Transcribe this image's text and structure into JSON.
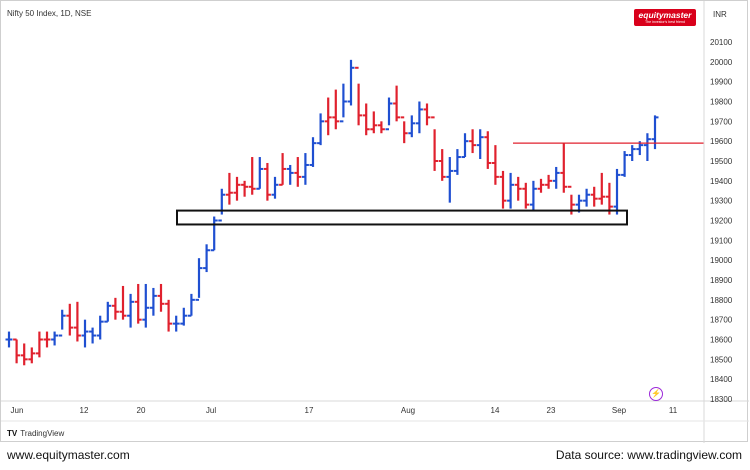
{
  "header": {
    "symbol": "Nifty 50 Index, 1D, NSE",
    "currency": "INR",
    "logo_name": "equitymaster",
    "logo_tagline": "The investor's best friend"
  },
  "branding": {
    "tradingview": "TradingView"
  },
  "footer": {
    "website": "www.equitymaster.com",
    "source": "Data source: www.tradingview.com"
  },
  "icons": {
    "flash": "lightning-icon",
    "tv": "tradingview-logo-icon"
  },
  "colors": {
    "up": "#1f4fd1",
    "down": "#e0212e",
    "resistance": "#e0212e",
    "support_box": "#111111"
  },
  "chart_data": {
    "type": "ohlc-bar",
    "y_ticks": [
      18300,
      18400,
      18500,
      18600,
      18700,
      18800,
      18900,
      19000,
      19100,
      19200,
      19300,
      19400,
      19500,
      19600,
      19700,
      19800,
      19900,
      20000,
      20100
    ],
    "ylim": [
      18300,
      20150
    ],
    "x_ticks": [
      "Jun",
      "12",
      "20",
      "Jul",
      "17",
      "Aug",
      "14",
      "23",
      "Sep",
      "11"
    ],
    "bars": [
      {
        "h": 18640,
        "l": 18560,
        "c": 18600,
        "up": true
      },
      {
        "h": 18600,
        "l": 18480,
        "c": 18520,
        "up": false
      },
      {
        "h": 18580,
        "l": 18470,
        "c": 18500,
        "up": false
      },
      {
        "h": 18560,
        "l": 18480,
        "c": 18530,
        "up": false
      },
      {
        "h": 18640,
        "l": 18510,
        "c": 18600,
        "up": false
      },
      {
        "h": 18640,
        "l": 18560,
        "c": 18600,
        "up": false
      },
      {
        "h": 18640,
        "l": 18570,
        "c": 18620,
        "up": true
      },
      {
        "h": 18750,
        "l": 18650,
        "c": 18720,
        "up": true
      },
      {
        "h": 18780,
        "l": 18620,
        "c": 18660,
        "up": false
      },
      {
        "h": 18790,
        "l": 18590,
        "c": 18620,
        "up": false
      },
      {
        "h": 18700,
        "l": 18560,
        "c": 18640,
        "up": true
      },
      {
        "h": 18660,
        "l": 18580,
        "c": 18620,
        "up": true
      },
      {
        "h": 18720,
        "l": 18600,
        "c": 18690,
        "up": true
      },
      {
        "h": 18790,
        "l": 18690,
        "c": 18770,
        "up": true
      },
      {
        "h": 18810,
        "l": 18700,
        "c": 18740,
        "up": false
      },
      {
        "h": 18870,
        "l": 18700,
        "c": 18720,
        "up": false
      },
      {
        "h": 18830,
        "l": 18660,
        "c": 18790,
        "up": true
      },
      {
        "h": 18880,
        "l": 18680,
        "c": 18700,
        "up": false
      },
      {
        "h": 18880,
        "l": 18660,
        "c": 18760,
        "up": true
      },
      {
        "h": 18860,
        "l": 18720,
        "c": 18820,
        "up": true
      },
      {
        "h": 18880,
        "l": 18740,
        "c": 18780,
        "up": false
      },
      {
        "h": 18800,
        "l": 18640,
        "c": 18680,
        "up": false
      },
      {
        "h": 18720,
        "l": 18640,
        "c": 18680,
        "up": true
      },
      {
        "h": 18760,
        "l": 18670,
        "c": 18720,
        "up": true
      },
      {
        "h": 18830,
        "l": 18720,
        "c": 18800,
        "up": true
      },
      {
        "h": 19010,
        "l": 18810,
        "c": 18960,
        "up": true
      },
      {
        "h": 19080,
        "l": 18940,
        "c": 19050,
        "up": true
      },
      {
        "h": 19220,
        "l": 19050,
        "c": 19200,
        "up": true
      },
      {
        "h": 19360,
        "l": 19230,
        "c": 19330,
        "up": true
      },
      {
        "h": 19440,
        "l": 19280,
        "c": 19340,
        "up": false
      },
      {
        "h": 19420,
        "l": 19300,
        "c": 19380,
        "up": false
      },
      {
        "h": 19400,
        "l": 19320,
        "c": 19370,
        "up": false
      },
      {
        "h": 19520,
        "l": 19330,
        "c": 19360,
        "up": false
      },
      {
        "h": 19520,
        "l": 19360,
        "c": 19460,
        "up": true
      },
      {
        "h": 19490,
        "l": 19300,
        "c": 19330,
        "up": false
      },
      {
        "h": 19420,
        "l": 19310,
        "c": 19380,
        "up": true
      },
      {
        "h": 19540,
        "l": 19380,
        "c": 19460,
        "up": false
      },
      {
        "h": 19480,
        "l": 19380,
        "c": 19440,
        "up": true
      },
      {
        "h": 19520,
        "l": 19370,
        "c": 19420,
        "up": false
      },
      {
        "h": 19540,
        "l": 19380,
        "c": 19480,
        "up": true
      },
      {
        "h": 19620,
        "l": 19470,
        "c": 19590,
        "up": true
      },
      {
        "h": 19740,
        "l": 19580,
        "c": 19700,
        "up": true
      },
      {
        "h": 19820,
        "l": 19630,
        "c": 19720,
        "up": false
      },
      {
        "h": 19860,
        "l": 19660,
        "c": 19700,
        "up": false
      },
      {
        "h": 19890,
        "l": 19720,
        "c": 19800,
        "up": true
      },
      {
        "h": 20010,
        "l": 19780,
        "c": 19970,
        "up": true
      },
      {
        "h": 19890,
        "l": 19680,
        "c": 19730,
        "up": false
      },
      {
        "h": 19790,
        "l": 19630,
        "c": 19660,
        "up": false
      },
      {
        "h": 19750,
        "l": 19640,
        "c": 19680,
        "up": false
      },
      {
        "h": 19700,
        "l": 19640,
        "c": 19660,
        "up": false
      },
      {
        "h": 19820,
        "l": 19680,
        "c": 19790,
        "up": true
      },
      {
        "h": 19880,
        "l": 19700,
        "c": 19720,
        "up": false
      },
      {
        "h": 19700,
        "l": 19590,
        "c": 19640,
        "up": false
      },
      {
        "h": 19730,
        "l": 19620,
        "c": 19690,
        "up": true
      },
      {
        "h": 19800,
        "l": 19640,
        "c": 19760,
        "up": true
      },
      {
        "h": 19790,
        "l": 19680,
        "c": 19720,
        "up": false
      },
      {
        "h": 19660,
        "l": 19450,
        "c": 19500,
        "up": false
      },
      {
        "h": 19560,
        "l": 19400,
        "c": 19420,
        "up": false
      },
      {
        "h": 19520,
        "l": 19290,
        "c": 19450,
        "up": true
      },
      {
        "h": 19560,
        "l": 19430,
        "c": 19520,
        "up": true
      },
      {
        "h": 19640,
        "l": 19520,
        "c": 19600,
        "up": true
      },
      {
        "h": 19660,
        "l": 19540,
        "c": 19580,
        "up": false
      },
      {
        "h": 19660,
        "l": 19510,
        "c": 19620,
        "up": true
      },
      {
        "h": 19650,
        "l": 19460,
        "c": 19490,
        "up": false
      },
      {
        "h": 19580,
        "l": 19380,
        "c": 19420,
        "up": false
      },
      {
        "h": 19450,
        "l": 19260,
        "c": 19300,
        "up": false
      },
      {
        "h": 19440,
        "l": 19260,
        "c": 19380,
        "up": true
      },
      {
        "h": 19420,
        "l": 19300,
        "c": 19360,
        "up": false
      },
      {
        "h": 19390,
        "l": 19260,
        "c": 19280,
        "up": false
      },
      {
        "h": 19400,
        "l": 19250,
        "c": 19360,
        "up": true
      },
      {
        "h": 19410,
        "l": 19340,
        "c": 19380,
        "up": false
      },
      {
        "h": 19430,
        "l": 19360,
        "c": 19400,
        "up": false
      },
      {
        "h": 19470,
        "l": 19360,
        "c": 19440,
        "up": true
      },
      {
        "h": 19590,
        "l": 19340,
        "c": 19370,
        "up": false
      },
      {
        "h": 19330,
        "l": 19230,
        "c": 19280,
        "up": false
      },
      {
        "h": 19330,
        "l": 19240,
        "c": 19300,
        "up": true
      },
      {
        "h": 19360,
        "l": 19270,
        "c": 19330,
        "up": true
      },
      {
        "h": 19370,
        "l": 19270,
        "c": 19310,
        "up": false
      },
      {
        "h": 19440,
        "l": 19280,
        "c": 19320,
        "up": false
      },
      {
        "h": 19390,
        "l": 19230,
        "c": 19270,
        "up": false
      },
      {
        "h": 19460,
        "l": 19230,
        "c": 19430,
        "up": true
      },
      {
        "h": 19550,
        "l": 19420,
        "c": 19530,
        "up": true
      },
      {
        "h": 19580,
        "l": 19500,
        "c": 19560,
        "up": true
      },
      {
        "h": 19600,
        "l": 19530,
        "c": 19580,
        "up": true
      },
      {
        "h": 19640,
        "l": 19500,
        "c": 19610,
        "up": true
      },
      {
        "h": 19730,
        "l": 19560,
        "c": 19720,
        "up": true
      }
    ],
    "resistance_level": 19590,
    "support_zone": [
      19180,
      19250
    ]
  }
}
